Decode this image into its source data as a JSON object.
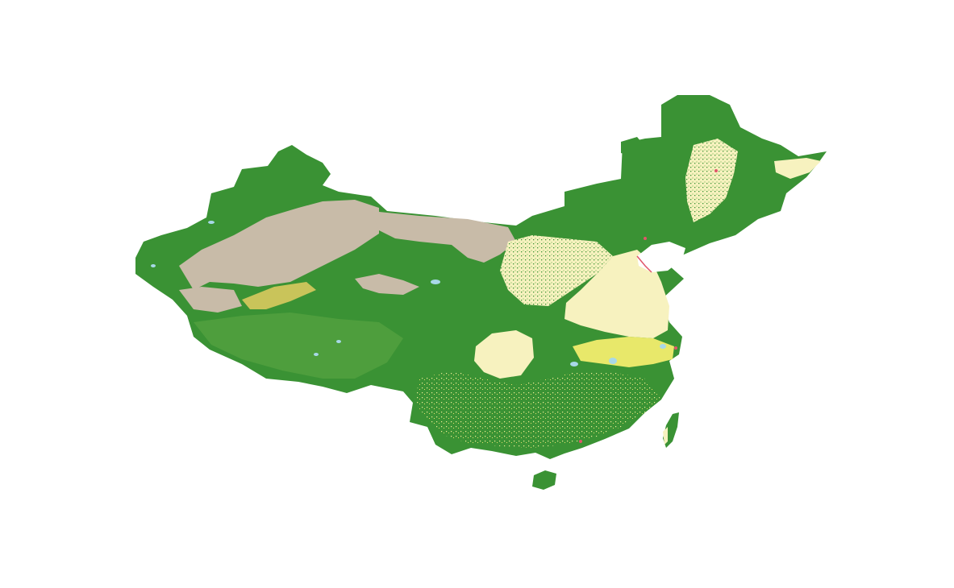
{
  "map": {
    "background_color": "#ffffff",
    "land_cover_classes": [
      {
        "class": "forest",
        "color": "#3a9234"
      },
      {
        "class": "grassland",
        "color": "#5fa845"
      },
      {
        "class": "bare-land",
        "color": "#c8bba8"
      },
      {
        "class": "cropland",
        "color": "#f7f2bf"
      },
      {
        "class": "shrubland",
        "color": "#e8e86a"
      },
      {
        "class": "sparse-vegetation",
        "color": "#c9c45a"
      },
      {
        "class": "water",
        "color": "#a8d8e8"
      },
      {
        "class": "built-up",
        "color": "#e0566a"
      }
    ]
  }
}
